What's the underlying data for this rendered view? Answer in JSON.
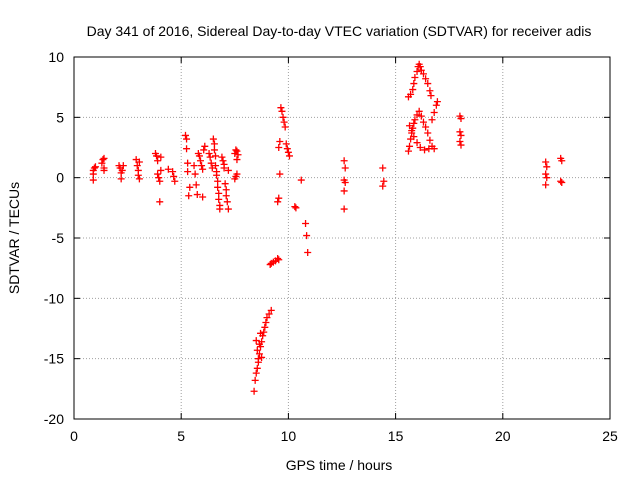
{
  "chart_data": {
    "type": "scatter",
    "title": "Day 341 of 2016, Sidereal Day-to-day VTEC variation (SDTVAR) for receiver adis",
    "xlabel": "GPS time / hours",
    "ylabel": "SDTVAR / TECUs",
    "xlim": [
      0,
      25
    ],
    "ylim": [
      -20,
      10
    ],
    "xticks": [
      "0",
      "5",
      "10",
      "15",
      "20",
      "25"
    ],
    "yticks": [
      "-20",
      "-15",
      "-10",
      "-5",
      "0",
      "5",
      "10"
    ],
    "grid": true,
    "marker": "plus",
    "color": "#ff0000",
    "series": [
      {
        "name": "SDTVAR",
        "points": [
          [
            0.9,
            -0.2
          ],
          [
            0.9,
            0.3
          ],
          [
            0.9,
            0.6
          ],
          [
            0.95,
            0.8
          ],
          [
            1.0,
            0.9
          ],
          [
            1.3,
            1.2
          ],
          [
            1.35,
            1.5
          ],
          [
            1.4,
            1.6
          ],
          [
            1.4,
            0.8
          ],
          [
            1.4,
            0.6
          ],
          [
            2.1,
            1.0
          ],
          [
            2.15,
            0.8
          ],
          [
            2.2,
            0.4
          ],
          [
            2.2,
            -0.1
          ],
          [
            2.25,
            0.6
          ],
          [
            2.3,
            1.0
          ],
          [
            2.9,
            1.5
          ],
          [
            2.95,
            1.0
          ],
          [
            3.0,
            0.6
          ],
          [
            3.0,
            0.2
          ],
          [
            3.05,
            -0.1
          ],
          [
            3.05,
            1.3
          ],
          [
            3.8,
            2.0
          ],
          [
            3.85,
            1.8
          ],
          [
            3.9,
            1.4
          ],
          [
            3.9,
            0.3
          ],
          [
            3.95,
            0.0
          ],
          [
            4.0,
            -0.3
          ],
          [
            4.0,
            -2.0
          ],
          [
            4.05,
            0.6
          ],
          [
            4.05,
            1.7
          ],
          [
            4.4,
            0.7
          ],
          [
            4.6,
            0.5
          ],
          [
            4.65,
            0.1
          ],
          [
            4.7,
            -0.3
          ],
          [
            5.2,
            3.5
          ],
          [
            5.25,
            3.2
          ],
          [
            5.25,
            2.4
          ],
          [
            5.3,
            1.2
          ],
          [
            5.3,
            0.5
          ],
          [
            5.35,
            -1.5
          ],
          [
            5.4,
            -0.8
          ],
          [
            5.6,
            1.0
          ],
          [
            5.65,
            0.3
          ],
          [
            5.7,
            -0.6
          ],
          [
            5.75,
            -1.4
          ],
          [
            5.8,
            2.0
          ],
          [
            5.85,
            1.8
          ],
          [
            5.9,
            1.4
          ],
          [
            5.95,
            1.0
          ],
          [
            6.0,
            0.7
          ],
          [
            6.0,
            -1.6
          ],
          [
            6.05,
            2.3
          ],
          [
            6.1,
            2.6
          ],
          [
            6.3,
            2.0
          ],
          [
            6.35,
            1.7
          ],
          [
            6.4,
            1.2
          ],
          [
            6.45,
            0.8
          ],
          [
            6.5,
            3.2
          ],
          [
            6.55,
            2.8
          ],
          [
            6.55,
            2.3
          ],
          [
            6.6,
            1.8
          ],
          [
            6.6,
            1.0
          ],
          [
            6.65,
            0.5
          ],
          [
            6.65,
            0.2
          ],
          [
            6.7,
            -0.3
          ],
          [
            6.7,
            -0.8
          ],
          [
            6.75,
            -1.3
          ],
          [
            6.75,
            -1.8
          ],
          [
            6.8,
            -2.3
          ],
          [
            6.8,
            -2.6
          ],
          [
            6.9,
            1.7
          ],
          [
            6.95,
            1.4
          ],
          [
            7.0,
            1.1
          ],
          [
            7.0,
            0.8
          ],
          [
            7.05,
            -0.5
          ],
          [
            7.1,
            -1.0
          ],
          [
            7.1,
            -1.5
          ],
          [
            7.15,
            -2.0
          ],
          [
            7.2,
            -2.6
          ],
          [
            7.2,
            0.6
          ],
          [
            7.5,
            -0.1
          ],
          [
            7.55,
            0.1
          ],
          [
            7.6,
            0.3
          ],
          [
            7.5,
            2.0
          ],
          [
            7.55,
            2.3
          ],
          [
            7.6,
            2.2
          ],
          [
            7.65,
            1.9
          ],
          [
            7.6,
            1.5
          ],
          [
            8.4,
            -17.7
          ],
          [
            8.45,
            -16.8
          ],
          [
            8.5,
            -16.2
          ],
          [
            8.55,
            -15.8
          ],
          [
            8.6,
            -15.3
          ],
          [
            8.65,
            -14.6
          ],
          [
            8.7,
            -14.0
          ],
          [
            8.75,
            -13.6
          ],
          [
            8.8,
            -13.1
          ],
          [
            8.85,
            -12.8
          ],
          [
            8.9,
            -12.4
          ],
          [
            8.95,
            -12.0
          ],
          [
            9.0,
            -11.6
          ],
          [
            9.1,
            -11.3
          ],
          [
            9.2,
            -11.0
          ],
          [
            8.5,
            -13.5
          ],
          [
            8.55,
            -14.3
          ],
          [
            8.6,
            -15.0
          ],
          [
            8.65,
            -13.8
          ],
          [
            8.7,
            -12.9
          ],
          [
            8.75,
            -14.9
          ],
          [
            9.15,
            -7.2
          ],
          [
            9.2,
            -7.1
          ],
          [
            9.3,
            -7.0
          ],
          [
            9.4,
            -6.9
          ],
          [
            9.5,
            -6.7
          ],
          [
            9.55,
            -6.8
          ],
          [
            9.5,
            -2.0
          ],
          [
            9.55,
            -1.7
          ],
          [
            9.6,
            0.3
          ],
          [
            9.55,
            2.5
          ],
          [
            9.6,
            3.0
          ],
          [
            9.65,
            5.8
          ],
          [
            9.7,
            5.5
          ],
          [
            9.75,
            5.0
          ],
          [
            9.8,
            4.6
          ],
          [
            9.85,
            4.2
          ],
          [
            9.9,
            2.8
          ],
          [
            9.95,
            2.4
          ],
          [
            10.0,
            2.1
          ],
          [
            10.05,
            1.8
          ],
          [
            10.3,
            -2.4
          ],
          [
            10.35,
            -2.5
          ],
          [
            10.6,
            -0.2
          ],
          [
            10.8,
            -3.8
          ],
          [
            10.85,
            -4.8
          ],
          [
            10.9,
            -6.2
          ],
          [
            12.6,
            1.4
          ],
          [
            12.65,
            0.8
          ],
          [
            12.6,
            -0.2
          ],
          [
            12.65,
            -0.4
          ],
          [
            12.6,
            -1.1
          ],
          [
            12.6,
            -2.6
          ],
          [
            14.4,
            0.8
          ],
          [
            14.45,
            -0.3
          ],
          [
            14.4,
            -0.7
          ],
          [
            15.6,
            6.7
          ],
          [
            15.7,
            6.9
          ],
          [
            15.8,
            7.3
          ],
          [
            15.85,
            7.8
          ],
          [
            15.9,
            8.3
          ],
          [
            16.0,
            8.8
          ],
          [
            16.05,
            9.2
          ],
          [
            16.1,
            9.4
          ],
          [
            16.15,
            9.2
          ],
          [
            16.2,
            8.9
          ],
          [
            16.3,
            8.6
          ],
          [
            16.4,
            8.2
          ],
          [
            16.5,
            7.8
          ],
          [
            16.6,
            7.2
          ],
          [
            16.65,
            6.8
          ],
          [
            15.6,
            2.2
          ],
          [
            15.65,
            2.6
          ],
          [
            15.7,
            3.2
          ],
          [
            15.75,
            3.7
          ],
          [
            15.8,
            4.1
          ],
          [
            15.85,
            4.5
          ],
          [
            15.9,
            4.8
          ],
          [
            16.0,
            5.2
          ],
          [
            16.1,
            5.5
          ],
          [
            16.2,
            5.1
          ],
          [
            16.3,
            4.6
          ],
          [
            16.4,
            4.2
          ],
          [
            16.5,
            3.7
          ],
          [
            16.6,
            3.1
          ],
          [
            16.7,
            2.6
          ],
          [
            16.8,
            2.4
          ],
          [
            15.65,
            4.3
          ],
          [
            15.75,
            3.9
          ],
          [
            15.85,
            3.4
          ],
          [
            16.0,
            2.9
          ],
          [
            16.15,
            2.5
          ],
          [
            16.35,
            2.3
          ],
          [
            16.55,
            2.4
          ],
          [
            16.7,
            4.8
          ],
          [
            16.8,
            5.4
          ],
          [
            16.9,
            6.0
          ],
          [
            16.95,
            6.3
          ],
          [
            18.0,
            5.1
          ],
          [
            18.05,
            4.9
          ],
          [
            18.0,
            3.8
          ],
          [
            18.05,
            3.5
          ],
          [
            18.0,
            3.0
          ],
          [
            18.05,
            2.7
          ],
          [
            22.0,
            1.3
          ],
          [
            22.05,
            0.9
          ],
          [
            22.0,
            0.3
          ],
          [
            22.05,
            0.0
          ],
          [
            22.0,
            -0.6
          ],
          [
            22.7,
            1.6
          ],
          [
            22.75,
            1.4
          ],
          [
            22.7,
            -0.3
          ],
          [
            22.75,
            -0.4
          ]
        ]
      }
    ]
  }
}
